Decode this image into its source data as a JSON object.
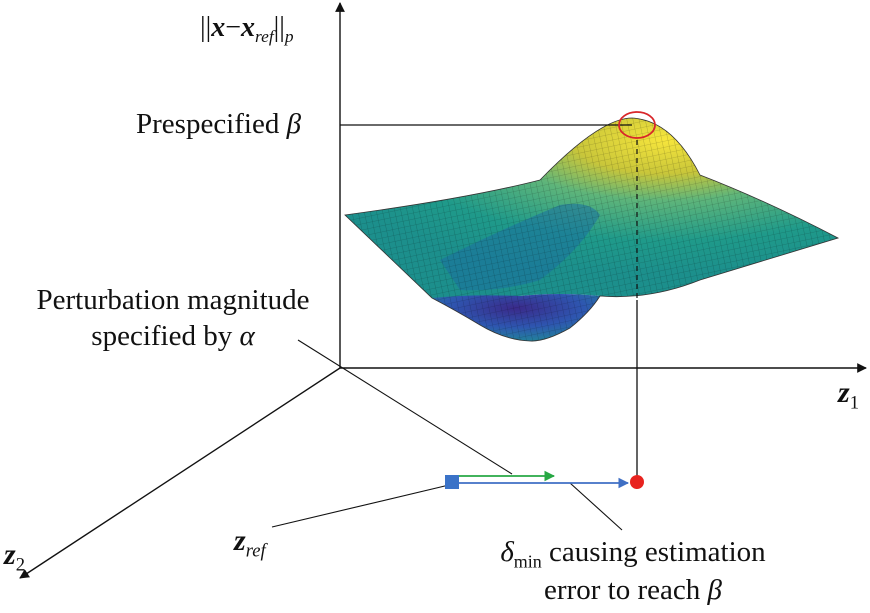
{
  "axes": {
    "y_label": {
      "open": "||",
      "x": "x",
      "minus": "−",
      "xref": "x",
      "ref": "ref",
      "close": "||",
      "p": "p"
    },
    "z1": {
      "z": "z",
      "sub": "1"
    },
    "z2": {
      "z": "z",
      "sub": "2"
    }
  },
  "labels": {
    "beta_text": "Prespecified",
    "beta_sym": "β",
    "perturb_line1": "Perturbation magnitude",
    "perturb_line2_text": "specified by",
    "perturb_sym": "α",
    "zref_z": "z",
    "zref_sub": "ref",
    "delta_sym": "δ",
    "delta_sub": "min",
    "delta_line1_rest": " causing estimation",
    "delta_line2_text": "error to reach",
    "delta_line2_sym": "β"
  },
  "colors": {
    "axis": "#111111",
    "blue_arrow": "#3f6fc4",
    "green_arrow": "#27a844",
    "red_point": "#e8231f",
    "blue_marker": "#3b73c8",
    "peak_circle": "#d8262a",
    "surface_low": "#3a2a8a",
    "surface_mid": "#1f9a8a",
    "surface_high": "#f5e23a"
  }
}
